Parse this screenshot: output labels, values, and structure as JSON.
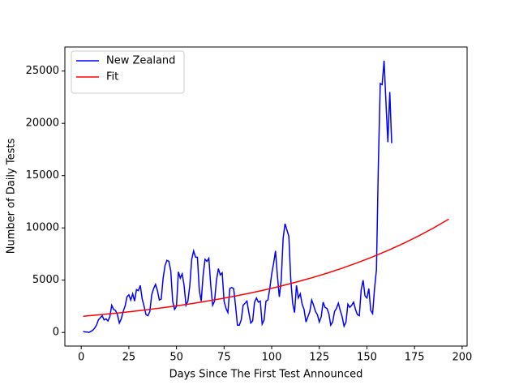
{
  "chart_data": {
    "type": "line",
    "xlabel": "Days Since The First Test Announced",
    "ylabel": "Number of Daily Tests",
    "xlim": [
      -8.6,
      202.6
    ],
    "ylim": [
      -1300,
      27300
    ],
    "xticks": [
      0,
      25,
      50,
      75,
      100,
      125,
      150,
      175,
      200
    ],
    "yticks": [
      0,
      5000,
      10000,
      15000,
      20000,
      25000
    ],
    "grid": false,
    "legend": "upper left",
    "series": [
      {
        "name": "New Zealand",
        "color": "#0000ff",
        "x": [
          1,
          2,
          3,
          4,
          5,
          6,
          7,
          8,
          9,
          10,
          11,
          12,
          13,
          14,
          15,
          16,
          17,
          18,
          19,
          20,
          21,
          22,
          23,
          24,
          25,
          26,
          27,
          28,
          29,
          30,
          31,
          32,
          33,
          34,
          35,
          36,
          37,
          38,
          39,
          40,
          41,
          42,
          43,
          44,
          45,
          46,
          47,
          48,
          49,
          50,
          51,
          52,
          53,
          54,
          55,
          56,
          57,
          58,
          59,
          60,
          61,
          62,
          63,
          64,
          65,
          66,
          67,
          68,
          69,
          70,
          71,
          72,
          73,
          74,
          75,
          76,
          77,
          78,
          79,
          80,
          81,
          82,
          83,
          84,
          85,
          86,
          87,
          88,
          89,
          90,
          91,
          92,
          93,
          94,
          95,
          96,
          97,
          98,
          99,
          100,
          101,
          102,
          103,
          104,
          105,
          106,
          107,
          108,
          109,
          110,
          111,
          112,
          113,
          114,
          115,
          116,
          117,
          118,
          119,
          120,
          121,
          122,
          123,
          124,
          125,
          126,
          127,
          128,
          129,
          130,
          131,
          132,
          133,
          134,
          135,
          136,
          137,
          138,
          139,
          140,
          141,
          142,
          143,
          144,
          145,
          146,
          147,
          148,
          149,
          150,
          151,
          152,
          153,
          154,
          155,
          156,
          157,
          158,
          159,
          160,
          161,
          162,
          163
        ],
        "values": [
          100,
          50,
          50,
          0,
          100,
          200,
          400,
          700,
          1200,
          1400,
          1600,
          1200,
          1300,
          1100,
          1500,
          2600,
          2200,
          2100,
          1700,
          900,
          1300,
          2000,
          2500,
          3400,
          3600,
          3100,
          3700,
          3000,
          4100,
          4000,
          4500,
          3200,
          2500,
          1700,
          1600,
          2000,
          3600,
          4200,
          4600,
          4000,
          3100,
          3200,
          5200,
          6400,
          6900,
          6800,
          5900,
          3000,
          2200,
          2500,
          5800,
          5200,
          5600,
          4500,
          2600,
          3000,
          4500,
          7000,
          7800,
          7200,
          7200,
          4000,
          3000,
          5500,
          7000,
          6800,
          7100,
          4500,
          2600,
          3000,
          5000,
          6100,
          5500,
          5700,
          3000,
          2300,
          1900,
          4200,
          4300,
          4200,
          2600,
          700,
          700,
          1200,
          2600,
          2800,
          3000,
          1900,
          900,
          1100,
          2900,
          3300,
          2900,
          3000,
          800,
          1200,
          3000,
          3100,
          4200,
          5600,
          6600,
          7800,
          5400,
          3400,
          5000,
          9000,
          10400,
          9800,
          9200,
          5100,
          2800,
          1900,
          4500,
          3300,
          3700,
          2700,
          2200,
          1000,
          1500,
          2000,
          3100,
          2600,
          2000,
          1700,
          1000,
          1500,
          2900,
          2400,
          2300,
          1800,
          700,
          1000,
          2000,
          2300,
          2800,
          2100,
          1500,
          600,
          1000,
          2700,
          2400,
          2600,
          2900,
          2200,
          1700,
          1600,
          4100,
          5000,
          3500,
          3300,
          4200,
          2100,
          1800,
          4200,
          6000,
          16000,
          23800,
          23700,
          26000,
          22000,
          18200,
          23000,
          18100
        ]
      },
      {
        "name": "Fit",
        "color": "#ff0000",
        "x": [
          1,
          9,
          17,
          25,
          33,
          41,
          49,
          57,
          65,
          73,
          81,
          89,
          97,
          105,
          113,
          121,
          129,
          137,
          145,
          153,
          161,
          169,
          177,
          185,
          193
        ],
        "values": [
          1550,
          1681,
          1823,
          1977,
          2143,
          2325,
          2521,
          2734,
          2964,
          3215,
          3486,
          3780,
          4099,
          4445,
          4821,
          5227,
          5668,
          6147,
          6666,
          7229,
          7838,
          8500,
          9218,
          9996,
          10839
        ]
      }
    ]
  }
}
